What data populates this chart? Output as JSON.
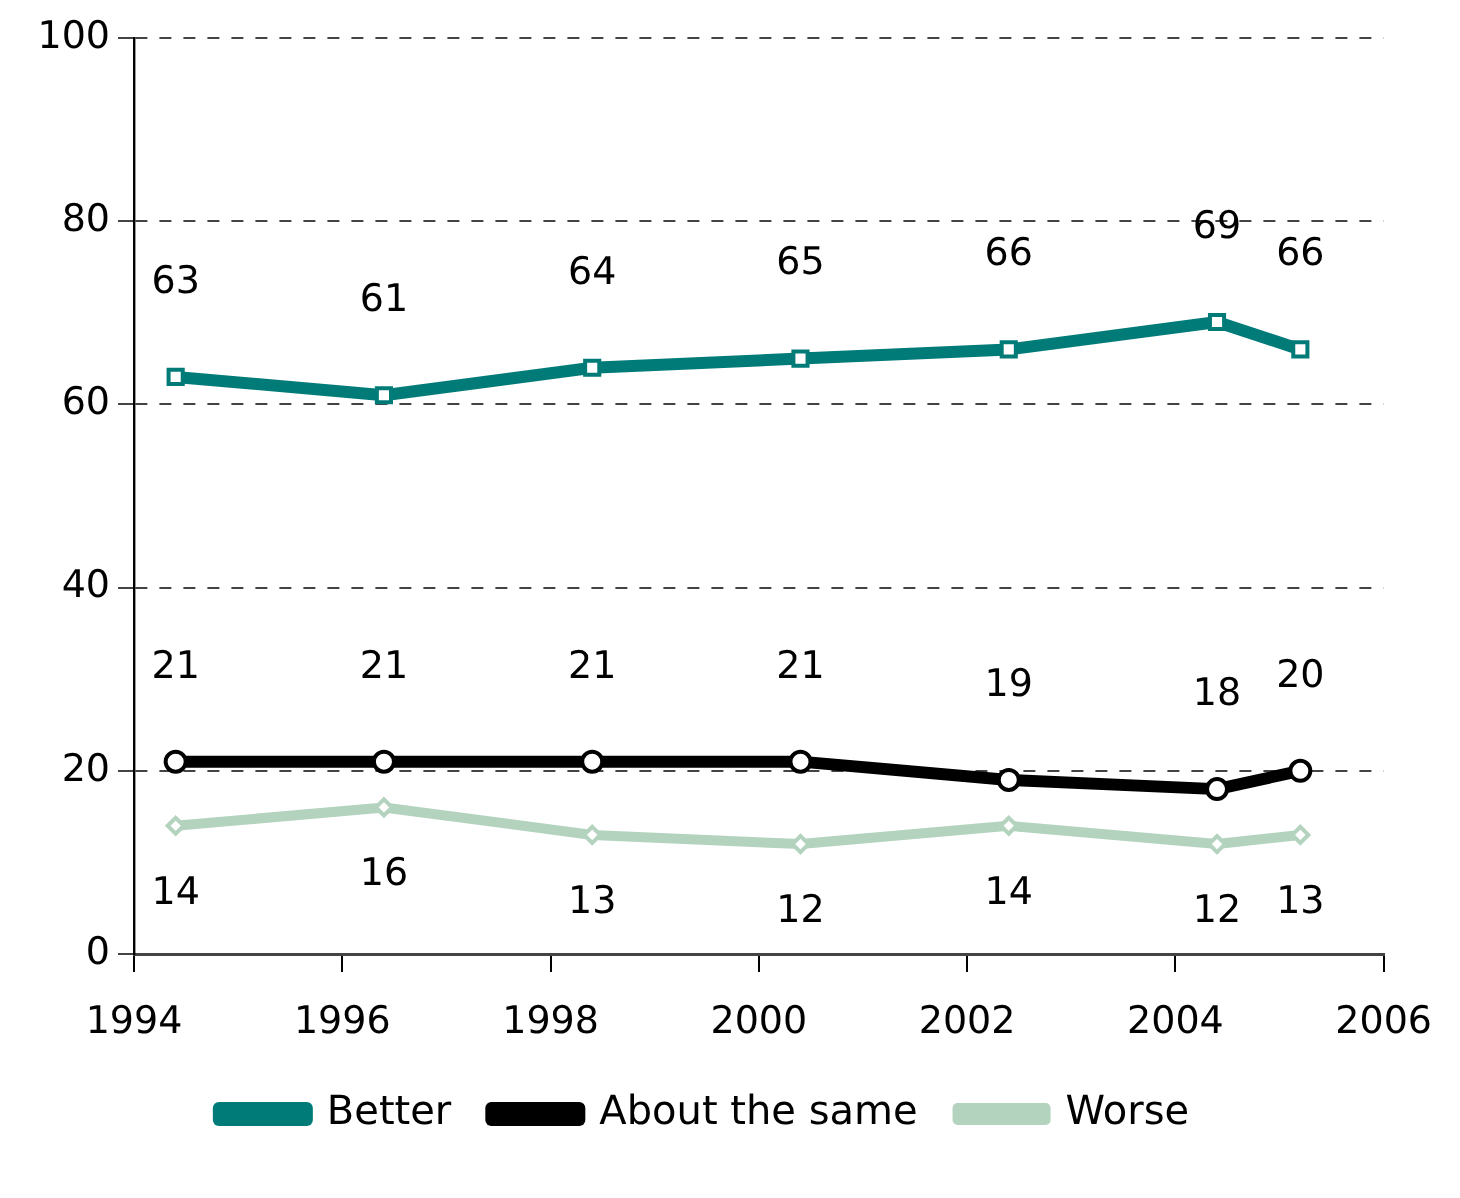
{
  "chart_data": {
    "type": "line",
    "x": [
      1994.4,
      1996.4,
      1998.4,
      2000.4,
      2002.4,
      2004.4,
      2005.2
    ],
    "series": [
      {
        "name": "Better",
        "color": "#007b78",
        "marker": "square",
        "values": [
          63,
          61,
          64,
          65,
          66,
          69,
          66
        ]
      },
      {
        "name": "About the same",
        "color": "#000000",
        "marker": "circle",
        "values": [
          21,
          21,
          21,
          21,
          19,
          18,
          20
        ]
      },
      {
        "name": "Worse",
        "color": "#b3d3bf",
        "marker": "diamond",
        "values": [
          14,
          16,
          13,
          12,
          14,
          12,
          13
        ]
      }
    ],
    "xlim": [
      1994,
      2006
    ],
    "xticks": [
      1994,
      1996,
      1998,
      2000,
      2002,
      2004,
      2006
    ],
    "ylim": [
      0,
      100
    ],
    "yticks": [
      0,
      20,
      40,
      60,
      80,
      100
    ],
    "grid": "y",
    "legend": "bottom",
    "data_labels": true,
    "line_style": "solid"
  }
}
